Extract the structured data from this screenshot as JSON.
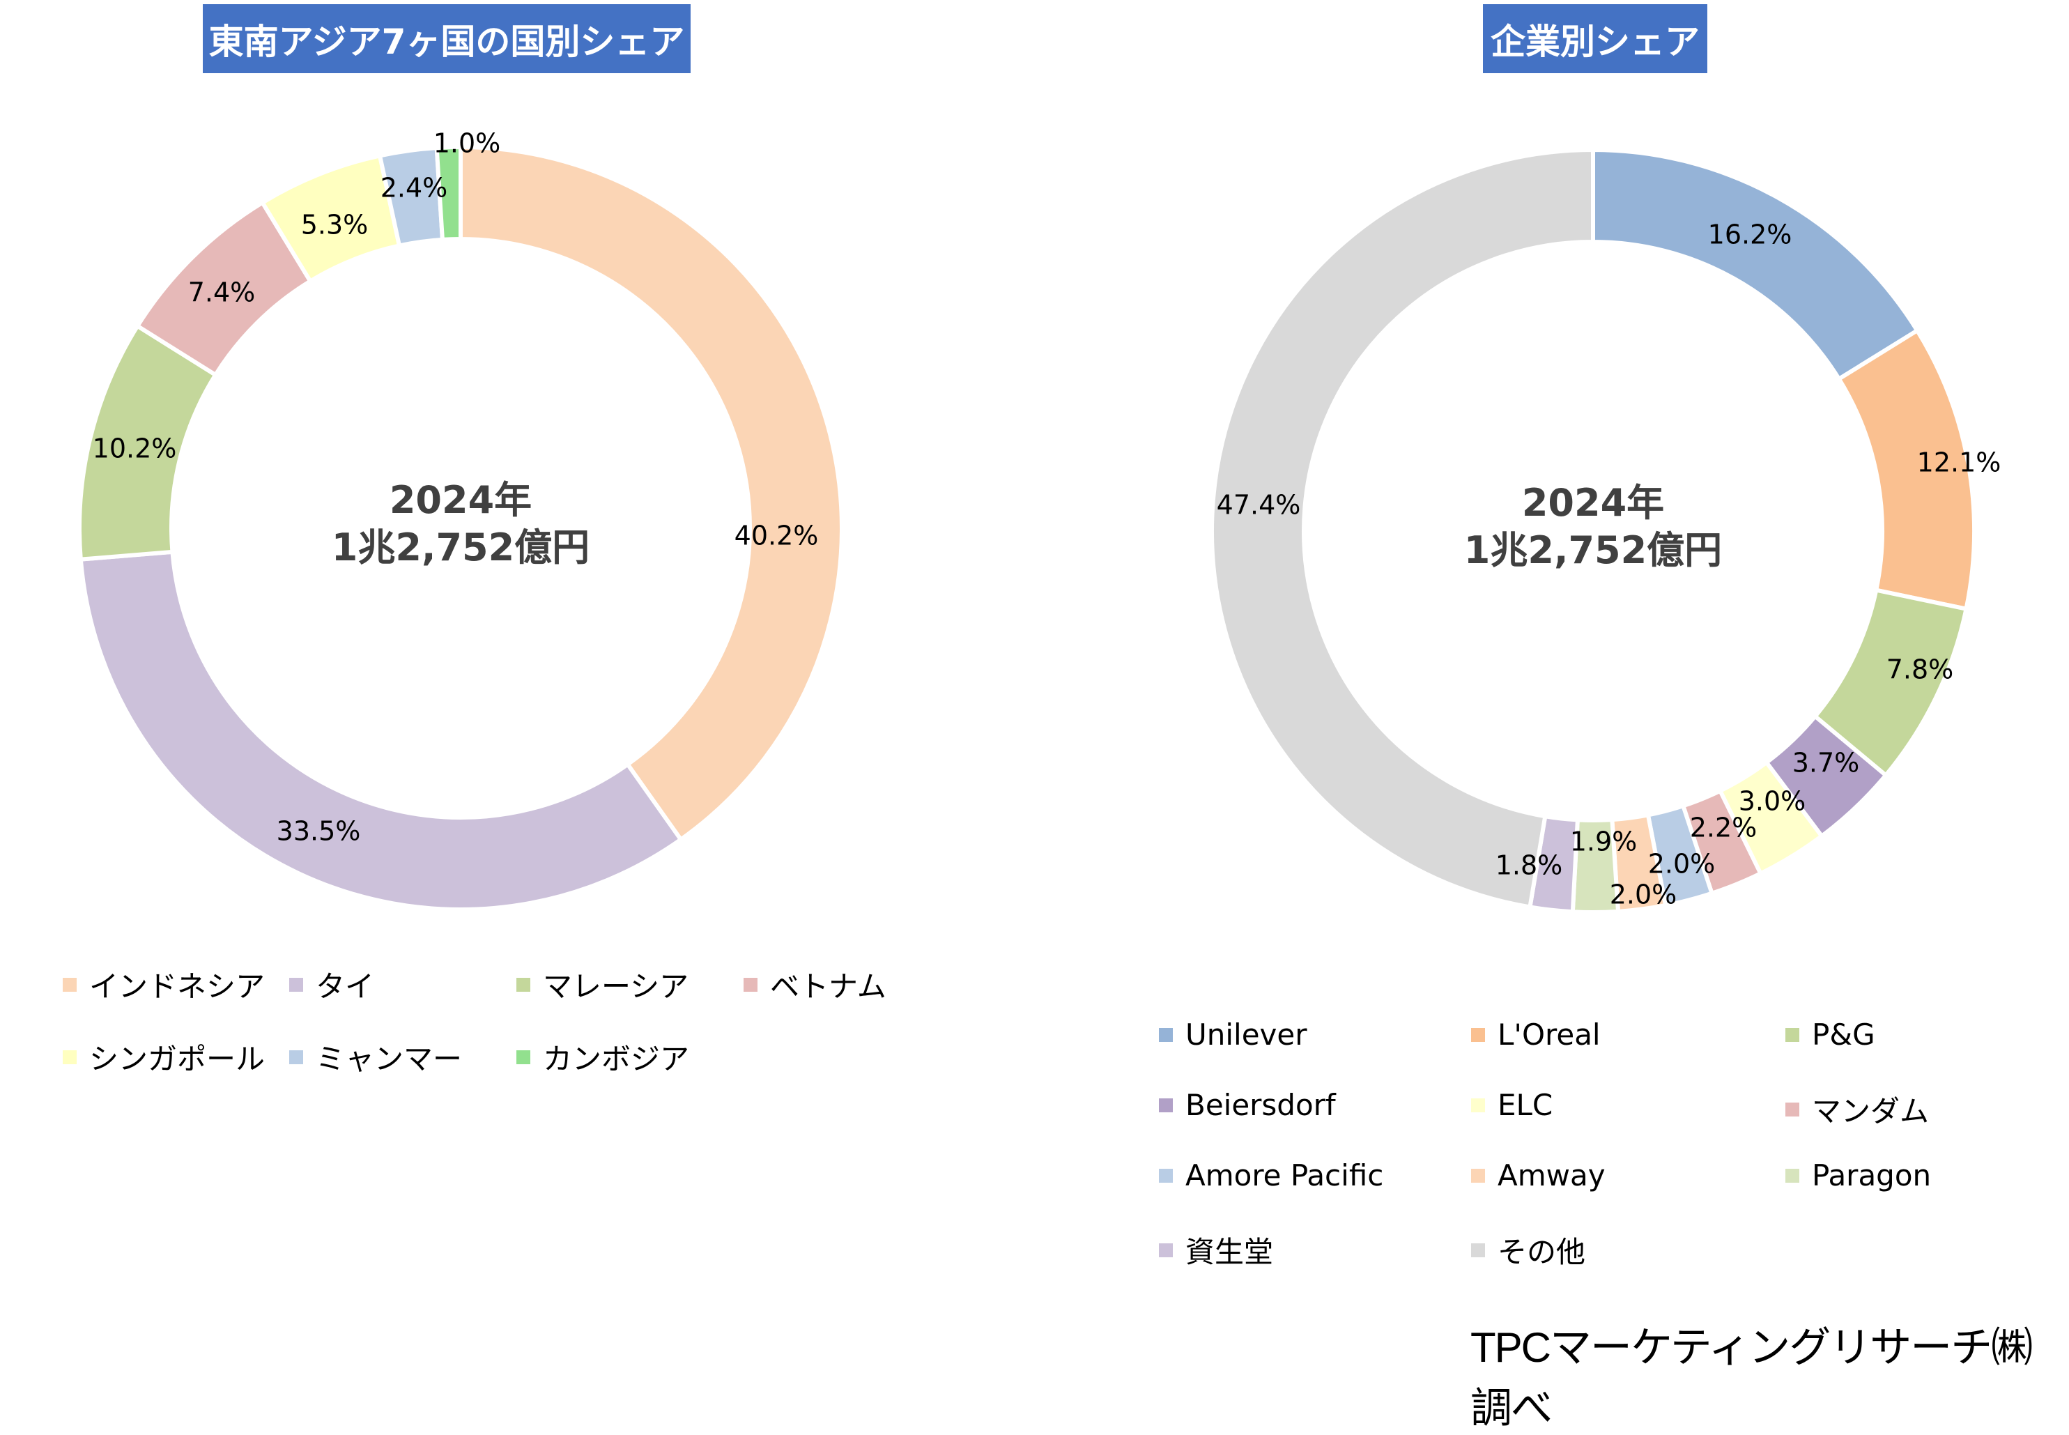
{
  "chart_data": [
    {
      "type": "pie",
      "variant": "donut",
      "title": "東南アジア7ヶ国の国別シェア",
      "center_text": [
        "2024年",
        "1兆2,752億円"
      ],
      "categories": [
        "インドネシア",
        "タイ",
        "マレーシア",
        "ベトナム",
        "シンガポール",
        "ミャンマー",
        "カンボジア"
      ],
      "values": [
        40.2,
        33.5,
        10.2,
        7.4,
        5.3,
        2.4,
        1.0
      ],
      "labels": [
        "40.2%",
        "33.5%",
        "10.2%",
        "7.4%",
        "5.3%",
        "2.4%",
        "1.0%"
      ],
      "colors": [
        "#FBD5B5",
        "#CCC1DA",
        "#C4D79B",
        "#E6B9B8",
        "#FFFFC0",
        "#B9CDE5",
        "#92E08E"
      ],
      "legend_position": "bottom"
    },
    {
      "type": "pie",
      "variant": "donut",
      "title": "企業別シェア",
      "center_text": [
        "2024年",
        "1兆2,752億円"
      ],
      "categories": [
        "Unilever",
        "L'Oreal",
        "P&G",
        "Beiersdorf",
        "ELC",
        "マンダム",
        "Amore Pacific",
        "Amway",
        "Paragon",
        "資生堂",
        "その他"
      ],
      "values": [
        16.2,
        12.1,
        7.8,
        3.7,
        3.0,
        2.2,
        2.0,
        2.0,
        1.9,
        1.8,
        47.4
      ],
      "labels": [
        "16.2%",
        "12.1%",
        "7.8%",
        "3.7%",
        "3.0%",
        "2.2%",
        "2.0%",
        "2.0%",
        "1.9%",
        "1.8%",
        "47.4%"
      ],
      "colors": [
        "#95B3D7",
        "#FAC090",
        "#C4D79B",
        "#B1A0C7",
        "#FFFFCC",
        "#E6B9B8",
        "#B9CDE5",
        "#FCD5B5",
        "#D7E4BD",
        "#CCC1DA",
        "#D9D9D9"
      ],
      "legend_position": "bottom"
    }
  ],
  "footer": "TPCマーケティングリサーチ㈱調べ"
}
